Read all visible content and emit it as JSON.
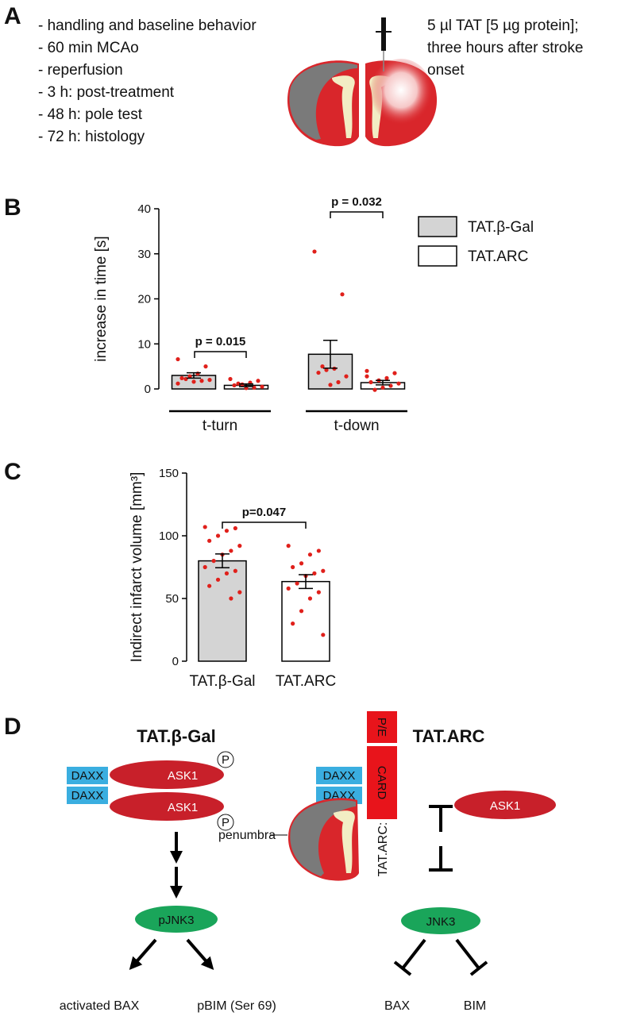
{
  "panel_a": {
    "label": "A",
    "steps": [
      "- handling and baseline behavior",
      "- 60 min MCAo",
      "- reperfusion",
      "- 3 h: post-treatment",
      "- 48 h: pole test",
      "- 72 h: histology"
    ],
    "injection": [
      "5 µl TAT [5 µg protein];",
      "three hours after stroke",
      "onset"
    ]
  },
  "chart_data": [
    {
      "panel": "B",
      "type": "bar",
      "y_label": "increase in time [s]",
      "categories": [
        "t-turn",
        "t-down"
      ],
      "series": [
        {
          "name": "TAT.β-Gal",
          "color": "#d4d4d4",
          "values": [
            3.0,
            7.7
          ],
          "errors": [
            0.6,
            3.1
          ],
          "points": [
            [
              6.6,
              5.0,
              3.4,
              2.8,
              2.4,
              2.0,
              1.8,
              1.6,
              2.2,
              1.2
            ],
            [
              30.5,
              21,
              4.5,
              4.2,
              3.6,
              2.8,
              1.5,
              0.9,
              5.0
            ]
          ]
        },
        {
          "name": "TAT.ARC",
          "color": "#ffffff",
          "values": [
            0.8,
            1.4
          ],
          "errors": [
            0.3,
            0.5
          ],
          "points": [
            [
              2.2,
              1.8,
              1.4,
              1.0,
              0.8,
              0.5,
              0.3,
              0.2,
              1.2
            ],
            [
              4.0,
              3.5,
              2.4,
              1.9,
              1.5,
              1.2,
              0.7,
              0.3,
              -0.2,
              2.8
            ]
          ]
        }
      ],
      "point_color": "#e0201b",
      "ylim": [
        0,
        40
      ],
      "yticks": [
        0,
        10,
        20,
        30,
        40
      ],
      "annotations": [
        "p = 0.015",
        "p = 0.032"
      ],
      "legend": "upper right"
    },
    {
      "panel": "C",
      "type": "bar",
      "y_label": "Indirect infarct volume [mm³]",
      "categories": [
        "TAT.β-Gal",
        "TAT.ARC"
      ],
      "values": [
        80,
        63.5
      ],
      "errors": [
        5.5,
        5.5
      ],
      "colors": [
        "#d4d4d4",
        "#ffffff"
      ],
      "points": [
        [
          107,
          106,
          104,
          100,
          96,
          92,
          88,
          85,
          80,
          75,
          72,
          70,
          65,
          60,
          55,
          50
        ],
        [
          92,
          88,
          85,
          78,
          75,
          72,
          70,
          68,
          62,
          58,
          55,
          50,
          40,
          30,
          21
        ]
      ],
      "point_color": "#e0201b",
      "ylim": [
        0,
        150
      ],
      "yticks": [
        0,
        50,
        100,
        150
      ],
      "annotations": [
        "p=0.047"
      ]
    }
  ],
  "panel_d": {
    "label": "D",
    "left": {
      "title": "TAT.β-Gal",
      "ask1": [
        "ASK1",
        "ASK1"
      ],
      "daxx": [
        "DAXX",
        "DAXX"
      ],
      "phospho": [
        "P",
        "P"
      ],
      "jnk": "pJNK3",
      "targets": [
        "activated BAX",
        "pBIM (Ser 69)"
      ]
    },
    "right": {
      "title": "TAT.ARC",
      "domains": [
        "P/E",
        "CARD"
      ],
      "construct": "TAT.ARC:",
      "daxx": [
        "DAXX",
        "DAXX"
      ],
      "ask1": "ASK1",
      "region": "penumbra",
      "jnk": "JNK3",
      "targets": [
        "BAX",
        "BIM"
      ]
    }
  }
}
